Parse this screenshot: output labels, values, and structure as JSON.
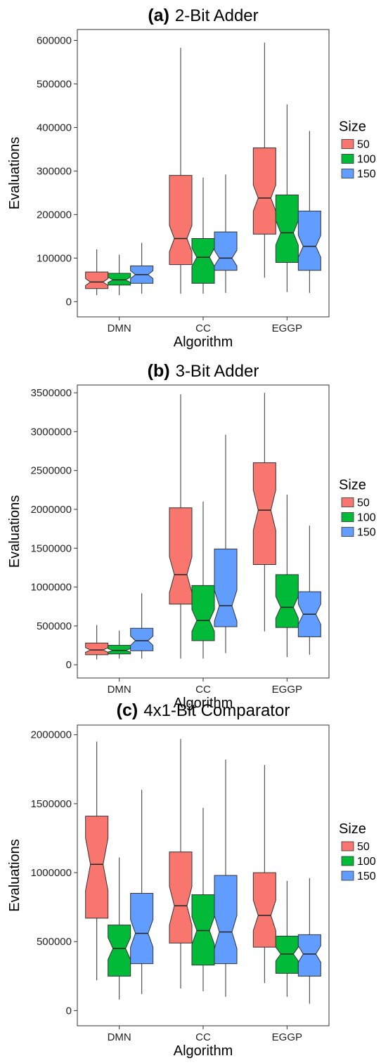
{
  "chart_data": [
    {
      "type": "box",
      "title_tag": "(a)",
      "title": "2-Bit Adder",
      "xlabel": "Algorithm",
      "ylabel": "Evaluations",
      "categories": [
        "DMN",
        "CC",
        "EGGP"
      ],
      "ylim": [
        -35000,
        625000
      ],
      "yticks": [
        0,
        100000,
        200000,
        300000,
        400000,
        500000,
        600000
      ],
      "grid": false,
      "legend": {
        "title": "Size",
        "placement": "right"
      },
      "series": [
        {
          "name": "50",
          "color": "#F8766D",
          "boxes": [
            {
              "min": 15000,
              "q1": 30000,
              "median": 45000,
              "q3": 68000,
              "max": 120000,
              "notch_low": 37000,
              "notch_high": 53000
            },
            {
              "min": 18000,
              "q1": 85000,
              "median": 145000,
              "q3": 290000,
              "max": 583000,
              "notch_low": 115000,
              "notch_high": 175000
            },
            {
              "min": 55000,
              "q1": 155000,
              "median": 238000,
              "q3": 353000,
              "max": 595000,
              "notch_low": 208000,
              "notch_high": 268000
            }
          ]
        },
        {
          "name": "100",
          "color": "#00BA38",
          "boxes": [
            {
              "min": 15000,
              "q1": 38000,
              "median": 50000,
              "q3": 65000,
              "max": 108000,
              "notch_low": 44000,
              "notch_high": 56000
            },
            {
              "min": 18000,
              "q1": 42000,
              "median": 102000,
              "q3": 145000,
              "max": 285000,
              "notch_low": 81000,
              "notch_high": 123000
            },
            {
              "min": 22000,
              "q1": 90000,
              "median": 158000,
              "q3": 245000,
              "max": 453000,
              "notch_low": 130000,
              "notch_high": 186000
            }
          ]
        },
        {
          "name": "150",
          "color": "#619CFF",
          "boxes": [
            {
              "min": 18000,
              "q1": 42000,
              "median": 62000,
              "q3": 82000,
              "max": 135000,
              "notch_low": 53000,
              "notch_high": 71000
            },
            {
              "min": 20000,
              "q1": 72000,
              "median": 100000,
              "q3": 160000,
              "max": 292000,
              "notch_low": 82000,
              "notch_high": 118000
            },
            {
              "min": 20000,
              "q1": 72000,
              "median": 127000,
              "q3": 208000,
              "max": 392000,
              "notch_low": 102000,
              "notch_high": 152000
            }
          ]
        }
      ]
    },
    {
      "type": "box",
      "title_tag": "(b)",
      "title": "3-Bit Adder",
      "xlabel": "Algorithm",
      "ylabel": "Evaluations",
      "categories": [
        "DMN",
        "CC",
        "EGGP"
      ],
      "ylim": [
        -170000,
        3600000
      ],
      "yticks": [
        0,
        500000,
        1000000,
        1500000,
        2000000,
        2500000,
        3000000,
        3500000
      ],
      "grid": false,
      "legend": {
        "title": "Size",
        "placement": "right"
      },
      "series": [
        {
          "name": "50",
          "color": "#F8766D",
          "boxes": [
            {
              "min": 70000,
              "q1": 130000,
              "median": 190000,
              "q3": 280000,
              "max": 510000,
              "notch_low": 160000,
              "notch_high": 220000
            },
            {
              "min": 80000,
              "q1": 780000,
              "median": 1160000,
              "q3": 2020000,
              "max": 3480000,
              "notch_low": 930000,
              "notch_high": 1390000
            },
            {
              "min": 430000,
              "q1": 1290000,
              "median": 1990000,
              "q3": 2600000,
              "max": 3500000,
              "notch_low": 1730000,
              "notch_high": 2250000
            }
          ]
        },
        {
          "name": "100",
          "color": "#00BA38",
          "boxes": [
            {
              "min": 80000,
              "q1": 140000,
              "median": 185000,
              "q3": 250000,
              "max": 440000,
              "notch_low": 163000,
              "notch_high": 207000
            },
            {
              "min": 80000,
              "q1": 310000,
              "median": 570000,
              "q3": 1020000,
              "max": 2100000,
              "notch_low": 430000,
              "notch_high": 710000
            },
            {
              "min": 100000,
              "q1": 480000,
              "median": 740000,
              "q3": 1160000,
              "max": 2190000,
              "notch_low": 600000,
              "notch_high": 880000
            }
          ]
        },
        {
          "name": "150",
          "color": "#619CFF",
          "boxes": [
            {
              "min": 80000,
              "q1": 180000,
              "median": 310000,
              "q3": 470000,
              "max": 920000,
              "notch_low": 250000,
              "notch_high": 370000
            },
            {
              "min": 150000,
              "q1": 490000,
              "median": 760000,
              "q3": 1490000,
              "max": 2960000,
              "notch_low": 560000,
              "notch_high": 960000
            },
            {
              "min": 130000,
              "q1": 360000,
              "median": 650000,
              "q3": 940000,
              "max": 1790000,
              "notch_low": 520000,
              "notch_high": 780000
            }
          ]
        }
      ]
    },
    {
      "type": "box",
      "title_tag": "(c)",
      "title": "4x1-Bit Comparator",
      "xlabel": "Algorithm",
      "ylabel": "Evaluations",
      "categories": [
        "DMN",
        "CC",
        "EGGP"
      ],
      "ylim": [
        -110000,
        2070000
      ],
      "yticks": [
        0,
        500000,
        1000000,
        1500000,
        2000000
      ],
      "grid": false,
      "legend": {
        "title": "Size",
        "placement": "right"
      },
      "series": [
        {
          "name": "50",
          "color": "#F8766D",
          "boxes": [
            {
              "min": 220000,
              "q1": 670000,
              "median": 1060000,
              "q3": 1410000,
              "max": 1950000,
              "notch_low": 870000,
              "notch_high": 1250000
            },
            {
              "min": 160000,
              "q1": 490000,
              "median": 760000,
              "q3": 1150000,
              "max": 1970000,
              "notch_low": 620000,
              "notch_high": 900000
            },
            {
              "min": 200000,
              "q1": 460000,
              "median": 690000,
              "q3": 1000000,
              "max": 1780000,
              "notch_low": 580000,
              "notch_high": 800000
            }
          ]
        },
        {
          "name": "100",
          "color": "#00BA38",
          "boxes": [
            {
              "min": 80000,
              "q1": 250000,
              "median": 450000,
              "q3": 620000,
              "max": 1110000,
              "notch_low": 370000,
              "notch_high": 530000
            },
            {
              "min": 140000,
              "q1": 330000,
              "median": 580000,
              "q3": 840000,
              "max": 1470000,
              "notch_low": 480000,
              "notch_high": 680000
            },
            {
              "min": 100000,
              "q1": 270000,
              "median": 410000,
              "q3": 540000,
              "max": 940000,
              "notch_low": 360000,
              "notch_high": 460000
            }
          ]
        },
        {
          "name": "150",
          "color": "#619CFF",
          "boxes": [
            {
              "min": 120000,
              "q1": 340000,
              "median": 560000,
              "q3": 850000,
              "max": 1600000,
              "notch_low": 460000,
              "notch_high": 660000
            },
            {
              "min": 100000,
              "q1": 340000,
              "median": 570000,
              "q3": 980000,
              "max": 1820000,
              "notch_low": 450000,
              "notch_high": 690000
            },
            {
              "min": 50000,
              "q1": 250000,
              "median": 410000,
              "q3": 550000,
              "max": 960000,
              "notch_low": 350000,
              "notch_high": 470000
            }
          ]
        }
      ]
    }
  ]
}
